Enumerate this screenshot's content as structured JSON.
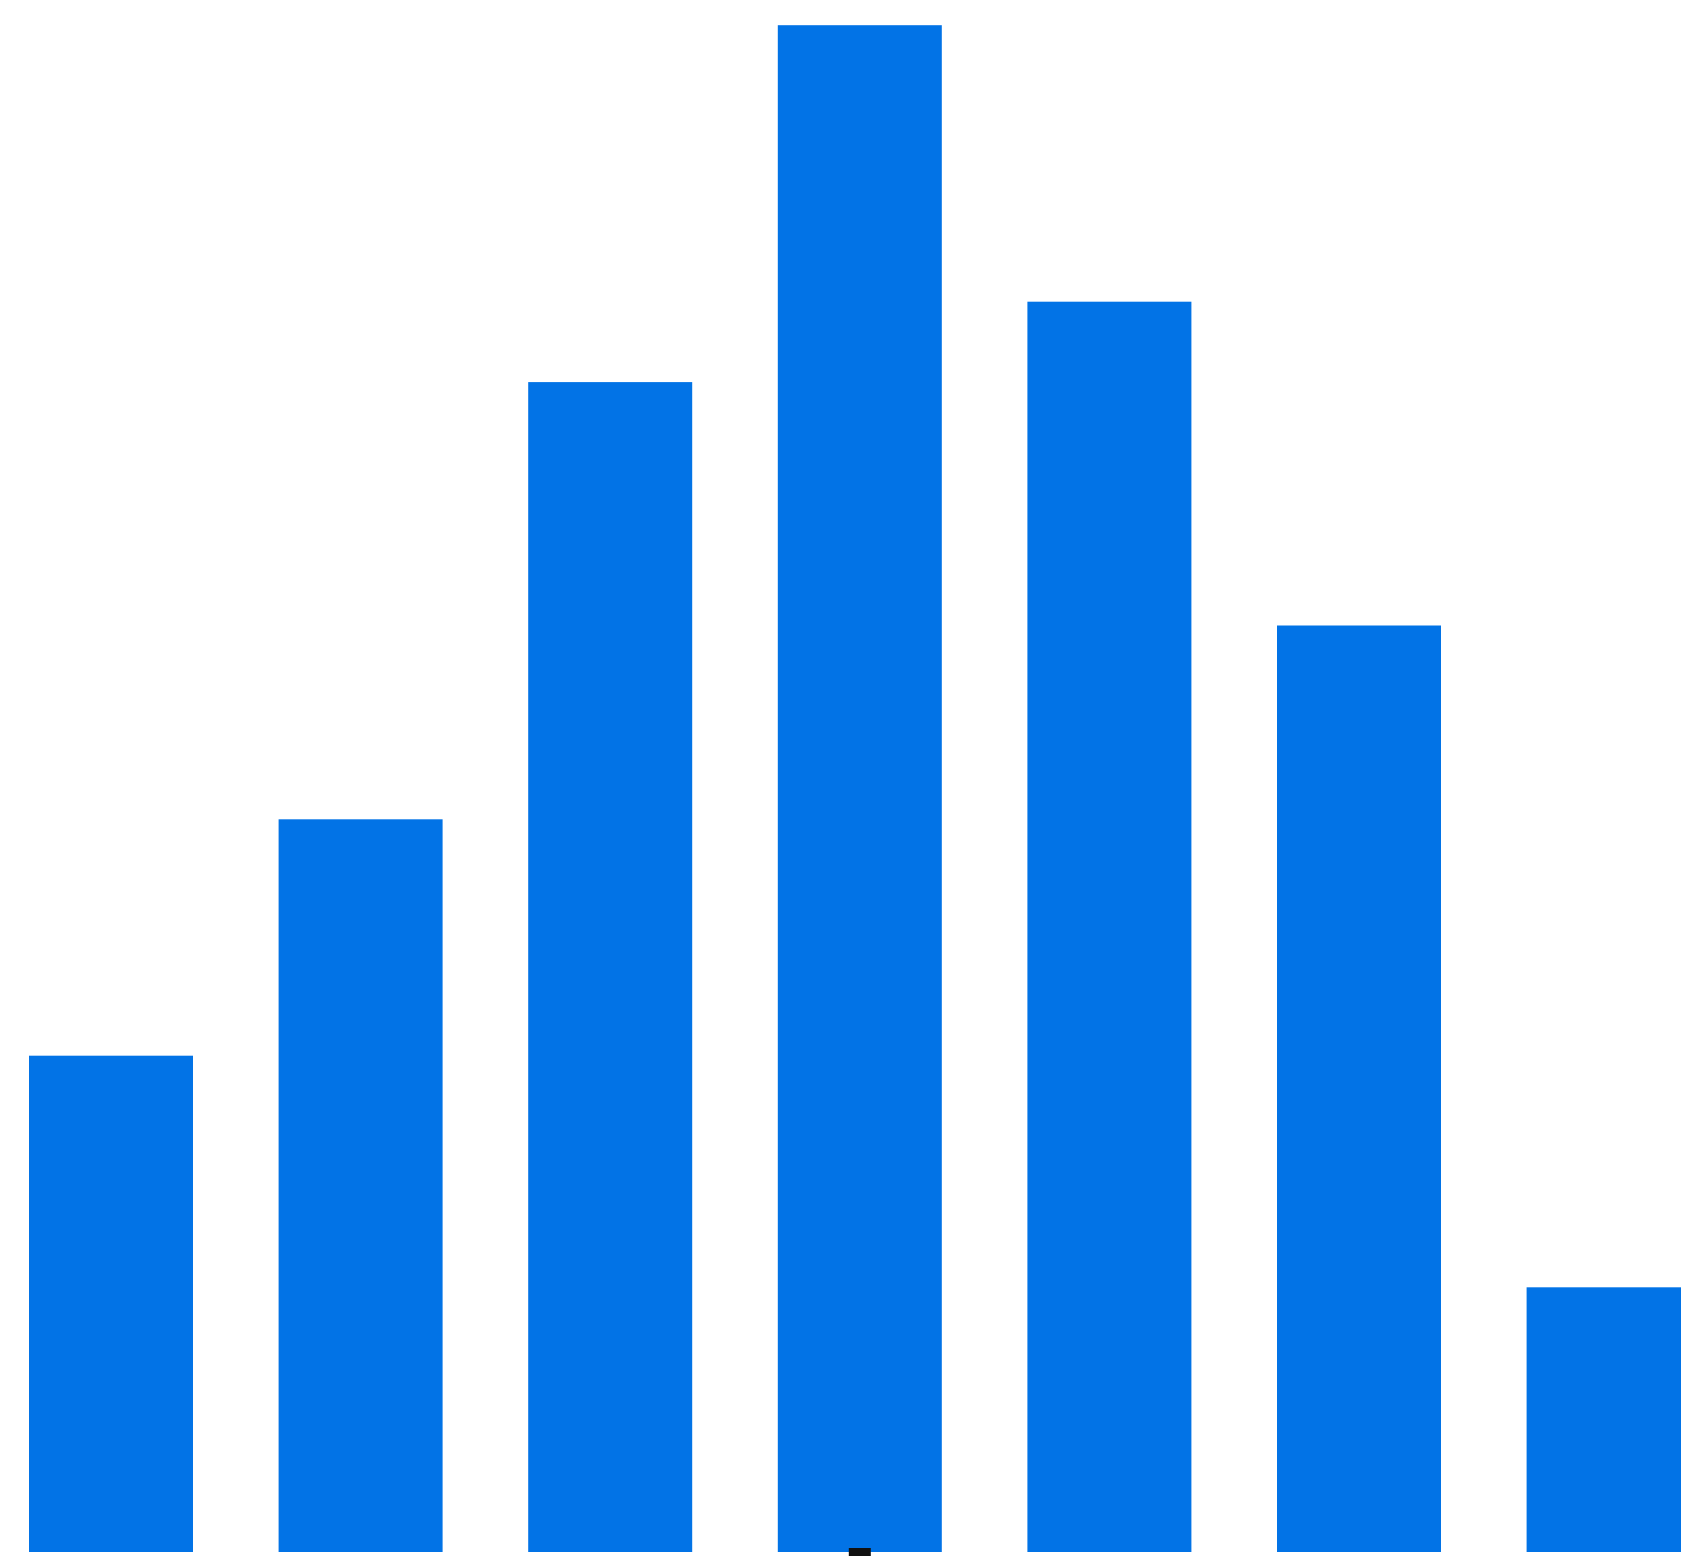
{
  "chart_data": {
    "type": "bar",
    "values": [
      10.5,
      15.5,
      24.75,
      32.3,
      26.45,
      19.6,
      5.6
    ],
    "ylim": [
      0,
      32.6
    ],
    "grid": false,
    "legend": "none",
    "bar_color": "#0273E6",
    "marker_color": "#111111"
  }
}
